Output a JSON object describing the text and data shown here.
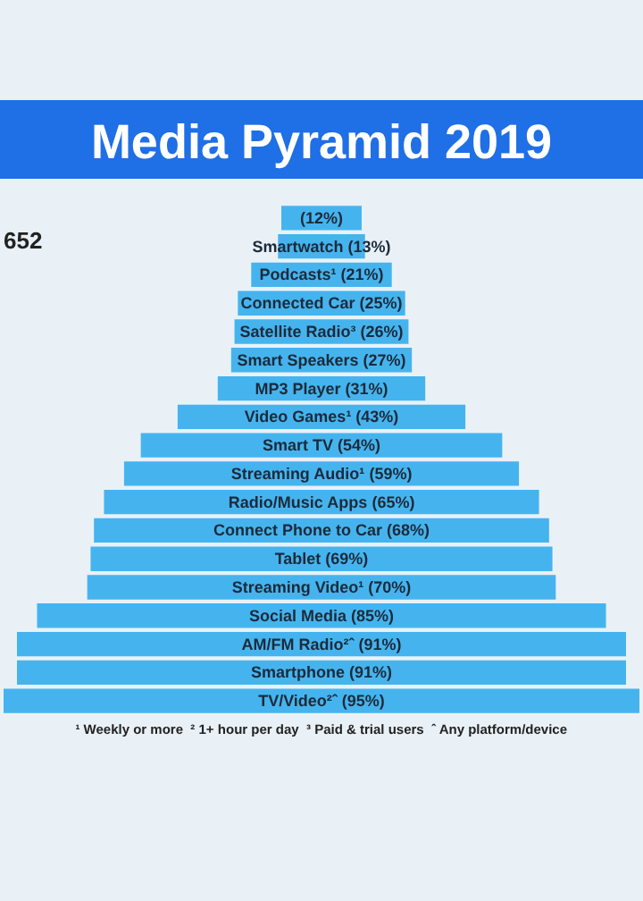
{
  "chart_data": {
    "type": "other",
    "title": "Media Pyramid 2019",
    "categories": [
      null,
      "Smartwatch",
      "Podcasts¹",
      "Connected Car",
      "Satellite Radio³",
      "Smart Speakers",
      "MP3 Player",
      "Video Games¹",
      "Smart TV",
      "Streaming Audio¹",
      "Radio/Music Apps",
      "Connect Phone to Car",
      "Tablet",
      "Streaming Video¹",
      "Social Media",
      "AM/FM Radio²ˆ",
      "Smartphone",
      "TV/Video²ˆ"
    ],
    "values": [
      12,
      13,
      21,
      25,
      26,
      27,
      31,
      43,
      54,
      59,
      65,
      68,
      69,
      70,
      85,
      91,
      91,
      95
    ],
    "value_labels": [
      "(12%)",
      "(13%)",
      "(21%)",
      "(25%)",
      "(26%)",
      "(27%)",
      "(31%)",
      "(43%)",
      "(54%)",
      "(59%)",
      "(65%)",
      "(68%)",
      "(69%)",
      "(70%)",
      "(85%)",
      "(91%)",
      "(91%)",
      "(95%)"
    ],
    "color": "#45b4ee",
    "annotations": [
      "652",
      "¹ Weekly or more  ² 1+ hour per day  ³ Paid & trial users  ˆ Any platform/device"
    ]
  }
}
